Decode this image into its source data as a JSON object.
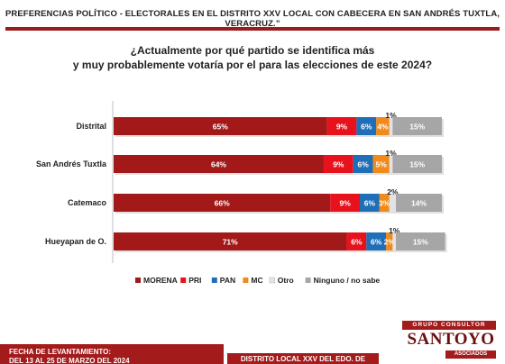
{
  "header": {
    "title": "PREFERENCIAS POLÍTICO - ELECTORALES EN EL DISTRITO XXV LOCAL CON CABECERA EN SAN ANDRÉS TUXTLA, VERACRUZ.”"
  },
  "question": {
    "line1": "¿Actualmente por qué partido se identifica más",
    "line2": "y muy probablemente votaría por el para las elecciones de este 2024?"
  },
  "chart_data": {
    "type": "bar",
    "orientation": "horizontal",
    "stacked": true,
    "percent_scale": true,
    "title": "",
    "xlabel": "",
    "ylabel": "",
    "xlim": [
      0,
      100
    ],
    "grid": false,
    "legend_position": "bottom",
    "categories": [
      "Distrital",
      "San Andrés Tuxtla",
      "Catemaco",
      "Hueyapan de O."
    ],
    "series": [
      {
        "name": "MORENA",
        "color": "#a31919",
        "values": [
          65,
          64,
          66,
          71
        ],
        "labels": [
          "65%",
          "64%",
          "66%",
          "71%"
        ]
      },
      {
        "name": "PRI",
        "color": "#e8121c",
        "values": [
          9,
          9,
          9,
          6
        ],
        "labels": [
          "9%",
          "9%",
          "9%",
          "6%"
        ]
      },
      {
        "name": "PAN",
        "color": "#1f6fb8",
        "values": [
          6,
          6,
          6,
          6
        ],
        "labels": [
          "6%",
          "6%",
          "6%",
          "6%"
        ]
      },
      {
        "name": "MC",
        "color": "#f08a1c",
        "values": [
          4,
          5,
          3,
          2
        ],
        "labels": [
          "4%",
          "5%",
          "3%",
          "2%"
        ]
      },
      {
        "name": "Otro",
        "color": "#e3e3e3",
        "values": [
          1,
          1,
          2,
          1
        ],
        "labels": [
          "1%",
          "1%",
          "2%",
          "1%"
        ]
      },
      {
        "name": "Ninguno / no sabe",
        "color": "#a6a6a6",
        "values": [
          15,
          15,
          14,
          15
        ],
        "labels": [
          "15%",
          "15%",
          "14%",
          "15%"
        ]
      }
    ]
  },
  "footer": {
    "left_line1": "FECHA DE LEVANTAMIENTO:",
    "left_line2": "DEL 13 AL 25 DE MARZO DEL 2024",
    "middle": "DISTRITO LOCAL XXV DEL EDO. DE VERACRUZ"
  },
  "logo": {
    "top": "GRUPO CONSULTOR",
    "main": "SANTOYO",
    "bottom": "ASOCIADOS"
  }
}
